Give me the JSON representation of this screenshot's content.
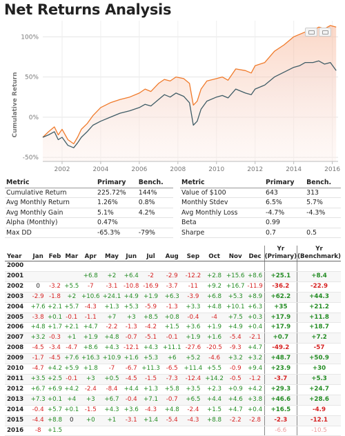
{
  "title": "Net Returns Analysis",
  "chart_data": {
    "type": "line",
    "ylabel": "Cumulative Return",
    "y_ticks": [
      "100%",
      "50%",
      "0%",
      "-50%"
    ],
    "y_tick_values": [
      100,
      50,
      0,
      -50
    ],
    "ylim": [
      -55,
      120
    ],
    "x_ticks": [
      "2002",
      "2004",
      "2006",
      "2008",
      "2010",
      "2012",
      "2014",
      "2016"
    ],
    "x_tick_values": [
      2002,
      2004,
      2006,
      2008,
      2010,
      2012,
      2014,
      2016
    ],
    "xlim": [
      2001.0,
      2016.3
    ],
    "grid": true,
    "colors": {
      "primary": "#f07a2a",
      "bench": "#3f5c66"
    },
    "series": [
      {
        "key": "primary",
        "x": [
          2001.0,
          2001.3,
          2001.6,
          2001.8,
          2002.0,
          2002.3,
          2002.6,
          2002.8,
          2003.0,
          2003.3,
          2003.6,
          2004.0,
          2004.5,
          2005.0,
          2005.5,
          2006.0,
          2006.3,
          2006.6,
          2007.0,
          2007.3,
          2007.6,
          2007.9,
          2008.3,
          2008.6,
          2008.8,
          2009.0,
          2009.2,
          2009.5,
          2010.0,
          2010.3,
          2010.6,
          2011.0,
          2011.5,
          2011.8,
          2012.0,
          2012.5,
          2013.0,
          2013.5,
          2014.0,
          2014.3,
          2014.6,
          2015.0,
          2015.3,
          2015.6,
          2015.9,
          2016.2
        ],
        "y": [
          -25,
          -18,
          -12,
          -22,
          -15,
          -28,
          -33,
          -25,
          -15,
          -8,
          2,
          12,
          18,
          22,
          25,
          30,
          35,
          32,
          42,
          47,
          45,
          50,
          48,
          42,
          15,
          20,
          35,
          45,
          48,
          50,
          46,
          60,
          58,
          55,
          64,
          68,
          82,
          90,
          100,
          103,
          106,
          108,
          112,
          110,
          114,
          112
        ]
      },
      {
        "key": "bench",
        "x": [
          2001.0,
          2001.3,
          2001.6,
          2001.8,
          2002.0,
          2002.3,
          2002.6,
          2002.8,
          2003.0,
          2003.3,
          2003.6,
          2004.0,
          2004.5,
          2005.0,
          2005.5,
          2006.0,
          2006.3,
          2006.6,
          2007.0,
          2007.3,
          2007.6,
          2007.9,
          2008.3,
          2008.6,
          2008.8,
          2009.0,
          2009.2,
          2009.5,
          2010.0,
          2010.3,
          2010.6,
          2011.0,
          2011.5,
          2011.8,
          2012.0,
          2012.5,
          2013.0,
          2013.5,
          2014.0,
          2014.3,
          2014.6,
          2015.0,
          2015.3,
          2015.6,
          2015.9,
          2016.2
        ],
        "y": [
          -25,
          -22,
          -18,
          -28,
          -25,
          -35,
          -38,
          -32,
          -25,
          -18,
          -10,
          -5,
          0,
          5,
          8,
          12,
          16,
          14,
          22,
          28,
          25,
          30,
          26,
          18,
          -10,
          -5,
          10,
          20,
          25,
          27,
          24,
          35,
          30,
          28,
          35,
          40,
          50,
          56,
          62,
          64,
          68,
          68,
          70,
          66,
          68,
          58
        ]
      }
    ]
  },
  "metrics_left": {
    "headers": [
      "Metric",
      "Primary",
      "Bench."
    ],
    "rows": [
      [
        "Cumulative Return",
        "225.72%",
        "144%"
      ],
      [
        "Avg Monthly Return",
        "1.26%",
        "0.8%"
      ],
      [
        "Avg Monthly Gain",
        "5.1%",
        "4.2%"
      ],
      [
        "Alpha (Monthly)",
        "0.47%",
        ""
      ],
      [
        "Max DD",
        "-65.3%",
        "-79%"
      ]
    ]
  },
  "metrics_right": {
    "headers": [
      "Metric",
      "Primary",
      "Bench."
    ],
    "rows": [
      [
        "Value of $100",
        "643",
        "313"
      ],
      [
        "Monthly Stdev",
        "6.5%",
        "5.7%"
      ],
      [
        "Avg Monthly Loss",
        "-4.7%",
        "-4.3%"
      ],
      [
        "Beta",
        "0.99",
        ""
      ],
      [
        "Sharpe",
        "0.7",
        "0.5"
      ]
    ]
  },
  "monthly": {
    "headers": [
      "Year",
      "Jan",
      "Feb",
      "Mar",
      "Apr",
      "May",
      "Jun",
      "Jul",
      "Aug",
      "Sep",
      "Oct",
      "Nov",
      "Dec",
      "Yr\n(Primary)",
      "Yr\n(Benchmark)"
    ],
    "rows": [
      [
        "2000",
        "",
        "",
        "",
        "",
        "",
        "",
        "",
        "",
        "",
        "",
        "",
        "",
        "",
        ""
      ],
      [
        "2001",
        "",
        "",
        "",
        "+6.8",
        "+2",
        "+6.4",
        "-2",
        "-2.9",
        "-12.2",
        "+2.8",
        "+15.6",
        "+8.6",
        "+25.1",
        "+8.4"
      ],
      [
        "2002",
        "0",
        "-3.2",
        "+5.5",
        "-7",
        "-3.1",
        "-10.8",
        "-16.9",
        "-3.7",
        "-11",
        "+9.2",
        "+16.7",
        "-11.9",
        "-36.2",
        "-22.9"
      ],
      [
        "2003",
        "-2.9",
        "-1.8",
        "+2",
        "+10.6",
        "+24.1",
        "+4.9",
        "+1.9",
        "+6.3",
        "-3.9",
        "+6.8",
        "+5.3",
        "+8.9",
        "+62.2",
        "+44.3"
      ],
      [
        "2004",
        "+7.6",
        "+2.1",
        "+5.7",
        "-4.3",
        "+1.3",
        "+5.3",
        "-5.9",
        "-1.3",
        "+3.3",
        "+4.8",
        "+10.1",
        "+6.3",
        "+35",
        "+21.2"
      ],
      [
        "2005",
        "-3.8",
        "+0.1",
        "-0.1",
        "-1.1",
        "+7",
        "+3",
        "+8.5",
        "+0.8",
        "-0.4",
        "-4",
        "+7.5",
        "+0.3",
        "+17.9",
        "+11.8"
      ],
      [
        "2006",
        "+4.8",
        "+1.7",
        "+2.1",
        "+4.7",
        "-2.2",
        "-1.3",
        "-4.2",
        "+1.5",
        "+3.6",
        "+1.9",
        "+4.9",
        "+0.4",
        "+17.9",
        "+18.7"
      ],
      [
        "2007",
        "+3.2",
        "-0.3",
        "+1",
        "+1.9",
        "+4.8",
        "-0.7",
        "-5.1",
        "-0.1",
        "+1.9",
        "+1.6",
        "-5.4",
        "-2.1",
        "+0.7",
        "+7.2"
      ],
      [
        "2008",
        "-4.5",
        "-3.4",
        "-4.7",
        "+8.6",
        "+4.3",
        "-12.1",
        "+4.3",
        "+11.1",
        "-27.6",
        "-20.5",
        "-9.3",
        "+4.7",
        "-49.2",
        "-57"
      ],
      [
        "2009",
        "-1.7",
        "-4.5",
        "+7.6",
        "+16.3",
        "+10.9",
        "+1.6",
        "+5.3",
        "+6",
        "+5.2",
        "-4.6",
        "+3.2",
        "+3.2",
        "+48.7",
        "+50.9"
      ],
      [
        "2010",
        "-4.7",
        "+4.2",
        "+5.9",
        "+1.8",
        "-7",
        "-6.7",
        "+11.3",
        "-6.5",
        "+11.4",
        "+5.5",
        "-0.9",
        "+9.4",
        "+23.9",
        "+30"
      ],
      [
        "2011",
        "+3.5",
        "+2.5",
        "-0.1",
        "+3",
        "+0.5",
        "-4.5",
        "-1.5",
        "-7.3",
        "-12.4",
        "+14.2",
        "-0.5",
        "-1.2",
        "-3.7",
        "+5.3"
      ],
      [
        "2012",
        "+6.7",
        "+6.9",
        "+4.2",
        "-2.4",
        "-8.4",
        "+4.4",
        "+1.3",
        "+5.8",
        "+3.5",
        "+2.3",
        "+0.9",
        "+4.2",
        "+29.3",
        "+24.7"
      ],
      [
        "2013",
        "+7.3",
        "+0.1",
        "+4",
        "+3",
        "+6.7",
        "-0.4",
        "+7.1",
        "-0.7",
        "+6.5",
        "+4.4",
        "+4.6",
        "+3.8",
        "+46.6",
        "+28.6"
      ],
      [
        "2014",
        "-0.4",
        "+5.7",
        "+0.1",
        "-1.5",
        "+4.3",
        "+3.6",
        "-4.3",
        "+4.8",
        "-2.4",
        "+1.5",
        "+4.7",
        "+0.4",
        "+16.5",
        "-4.9"
      ],
      [
        "2015",
        "-4.4",
        "+8.8",
        "0",
        "+0",
        "+1",
        "-3.1",
        "+1.4",
        "-5.4",
        "-4.3",
        "+8.8",
        "-2.2",
        "-2.8",
        "-2.3",
        "-12.1"
      ],
      [
        "2016",
        "-8",
        "+1.5",
        "",
        "",
        "",
        "",
        "",
        "",
        "",
        "",
        "",
        "",
        "-6.6",
        "-10.5"
      ]
    ]
  }
}
